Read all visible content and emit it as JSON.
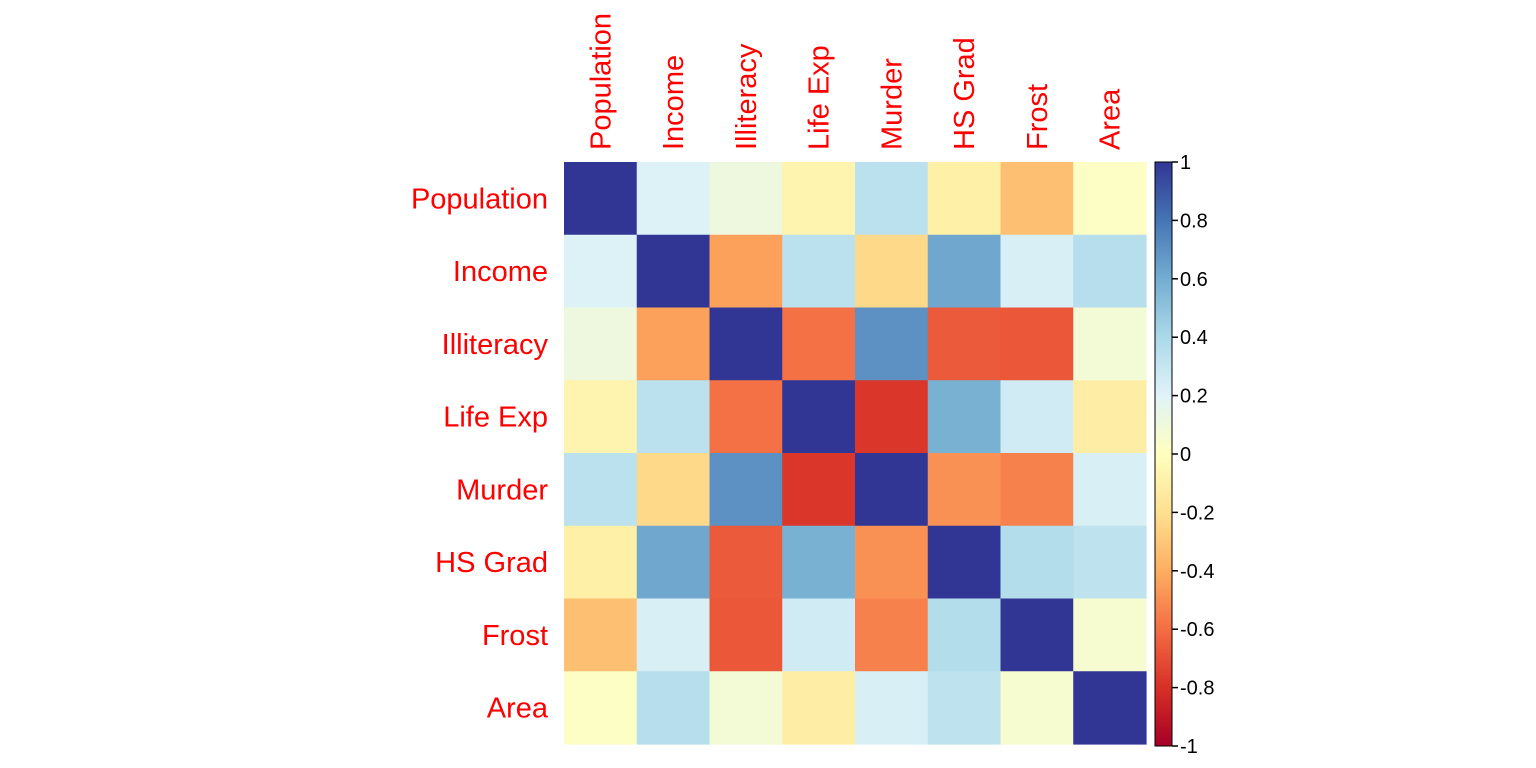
{
  "chart_data": {
    "type": "heatmap",
    "title": "",
    "row_labels": [
      "Population",
      "Income",
      "Illiteracy",
      "Life Exp",
      "Murder",
      "HS Grad",
      "Frost",
      "Area"
    ],
    "col_labels": [
      "Population",
      "Income",
      "Illiteracy",
      "Life Exp",
      "Murder",
      "HS Grad",
      "Frost",
      "Area"
    ],
    "values": [
      [
        1.0,
        0.21,
        0.11,
        -0.07,
        0.34,
        -0.1,
        -0.33,
        0.02
      ],
      [
        0.21,
        1.0,
        -0.44,
        0.34,
        -0.23,
        0.62,
        0.23,
        0.36
      ],
      [
        0.11,
        -0.44,
        1.0,
        -0.59,
        0.7,
        -0.66,
        -0.67,
        0.08
      ],
      [
        -0.07,
        0.34,
        -0.59,
        1.0,
        -0.78,
        0.58,
        0.26,
        -0.11
      ],
      [
        0.34,
        -0.23,
        0.7,
        -0.78,
        1.0,
        -0.49,
        -0.54,
        0.23
      ],
      [
        -0.1,
        0.62,
        -0.66,
        0.58,
        -0.49,
        1.0,
        0.37,
        0.33
      ],
      [
        -0.33,
        0.23,
        -0.67,
        0.26,
        -0.54,
        0.37,
        1.0,
        0.06
      ],
      [
        0.02,
        0.36,
        0.08,
        -0.11,
        0.23,
        0.33,
        0.06,
        1.0
      ]
    ],
    "colorbar": {
      "min": -1,
      "max": 1,
      "ticks": [
        "1",
        "0.8",
        "0.6",
        "0.4",
        "0.2",
        "0",
        "-0.2",
        "-0.4",
        "-0.6",
        "-0.8",
        "-1"
      ],
      "colors": [
        "#A50026",
        "#D73027",
        "#F46D43",
        "#FDAE61",
        "#FEE090",
        "#FFFFBF",
        "#E0F3F8",
        "#ABD9E9",
        "#74ADD1",
        "#4575B4",
        "#313695"
      ]
    },
    "label_color": "#FF0000"
  }
}
